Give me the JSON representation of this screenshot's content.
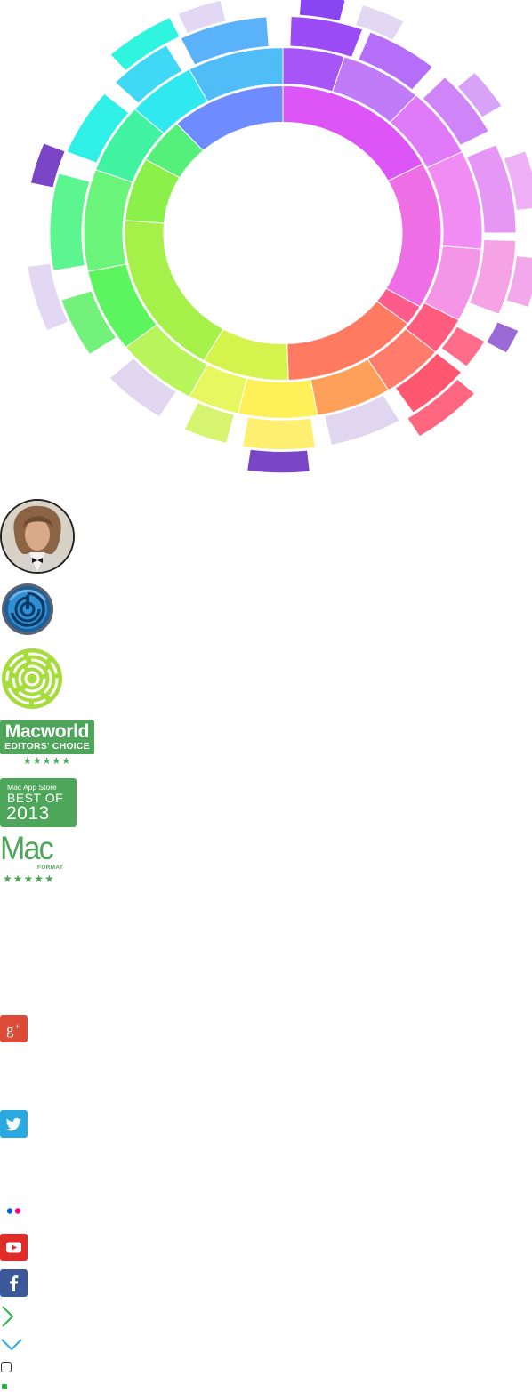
{
  "awards": {
    "macworld": {
      "title": "Macworld",
      "subtitle": "EDITORS' CHOICE",
      "stars": "★★★★★"
    },
    "app_store": {
      "store": "Mac App Store",
      "best_of": "BEST OF",
      "year": "2013"
    },
    "macformat": {
      "mac": "Mac",
      "format": "FORMAT",
      "stars": "★★★★★"
    }
  },
  "icons": {
    "avatar": "person-avatar",
    "app": "daisydisk-app-icon",
    "logo": "sunburst-logo-icon",
    "social": [
      "google-plus-icon",
      "twitter-icon",
      "flickr-icon",
      "youtube-icon",
      "facebook-icon"
    ],
    "controls": [
      "chevron-right-icon",
      "chevron-down-icon",
      "checkbox-icon",
      "square-dot-icon"
    ]
  },
  "colors": {
    "award_green": "#4da65a",
    "google_plus": "#dc4a38",
    "twitter": "#2aa9e0",
    "youtube": "#e12b28",
    "facebook": "#3b5998",
    "flickr_blue": "#0063dc",
    "flickr_pink": "#ff0084"
  }
}
